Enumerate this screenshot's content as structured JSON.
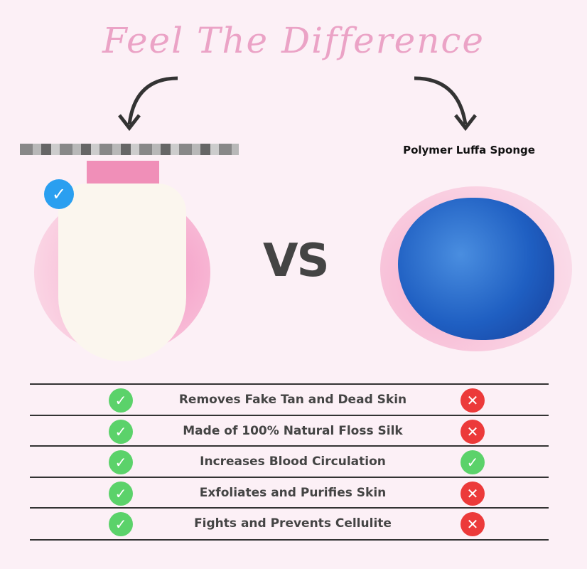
{
  "title": "Feel The Difference",
  "right_product": "Polymer Luffa Sponge",
  "vs": "VS",
  "colors": {
    "background": "#fcf0f6",
    "title": "#eba3c6",
    "check": "#5bd26a",
    "cross": "#ec3a3a",
    "badge": "#2a9ff0"
  },
  "rows": [
    {
      "feature": "Removes Fake Tan and Dead Skin",
      "left": "check",
      "right": "cross"
    },
    {
      "feature": "Made of 100% Natural Floss Silk",
      "left": "check",
      "right": "cross"
    },
    {
      "feature": "Increases Blood Circulation",
      "left": "check",
      "right": "check"
    },
    {
      "feature": "Exfoliates and Purifies Skin",
      "left": "check",
      "right": "cross"
    },
    {
      "feature": "Fights and Prevents Cellulite",
      "left": "check",
      "right": "cross"
    }
  ]
}
